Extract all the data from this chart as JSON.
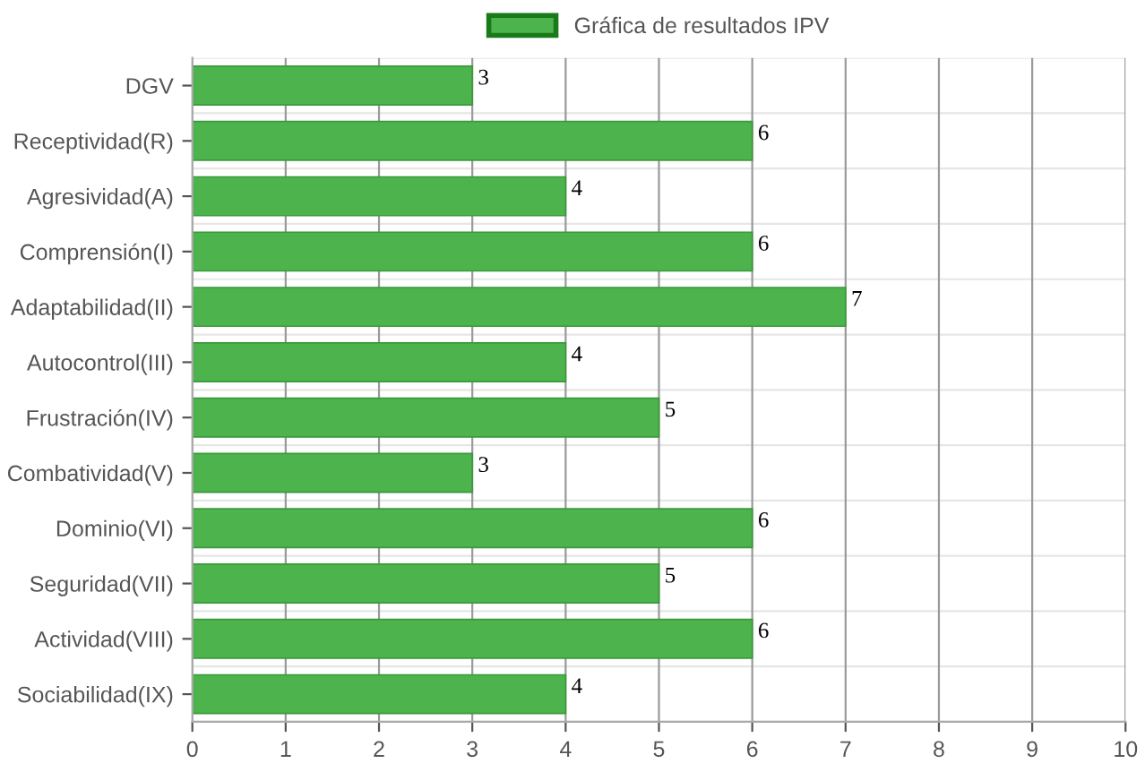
{
  "chart_data": {
    "type": "bar",
    "orientation": "horizontal",
    "categories": [
      "DGV",
      "Receptividad(R)",
      "Agresividad(A)",
      "Comprensión(I)",
      "Adaptabilidad(II)",
      "Autocontrol(III)",
      "Frustración(IV)",
      "Combatividad(V)",
      "Dominio(VI)",
      "Seguridad(VII)",
      "Actividad(VIII)",
      "Sociabilidad(IX)"
    ],
    "series": [
      {
        "name": "Gráfica de resultados IPV",
        "color": "#4db34d",
        "values": [
          3,
          6,
          4,
          6,
          7,
          4,
          5,
          3,
          6,
          5,
          6,
          4
        ]
      }
    ],
    "xlim": [
      0,
      10
    ],
    "xticks": [
      0,
      1,
      2,
      3,
      4,
      5,
      6,
      7,
      8,
      9,
      10
    ],
    "data_labels": true,
    "grid": true,
    "legend": "top"
  }
}
